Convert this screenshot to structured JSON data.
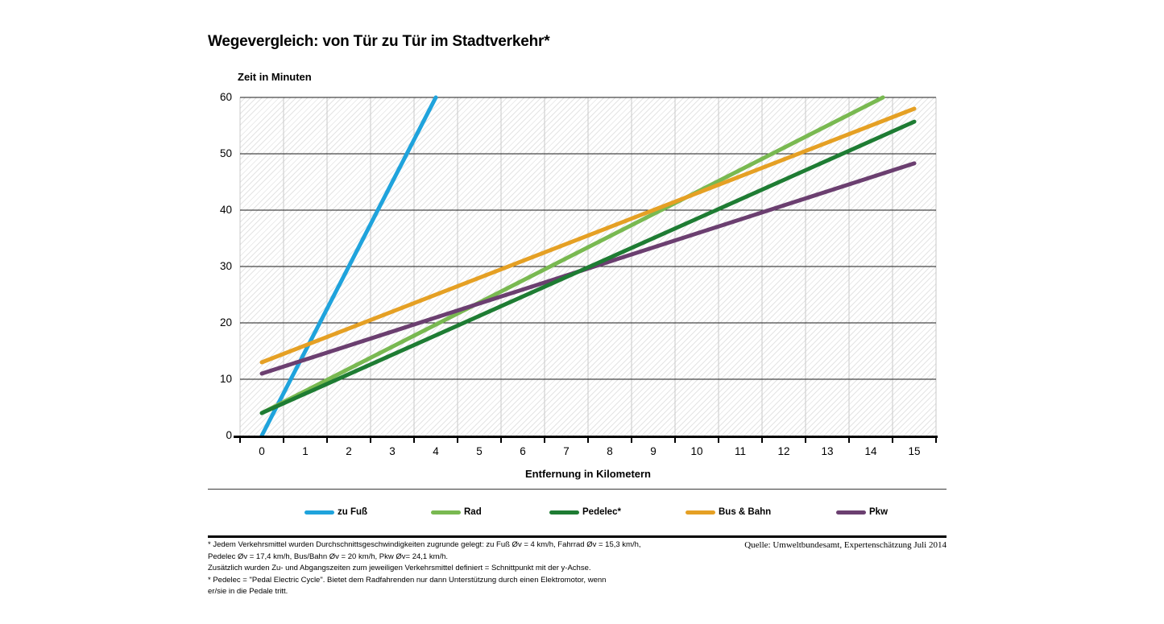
{
  "title": "Wegevergleich: von Tür zu Tür im Stadtverkehr*",
  "source": "Quelle: Umweltbundesamt, Expertenschätzung Juli 2014",
  "footnotes": [
    "* Jedem Verkehrsmittel wurden Durchschnittsgeschwindigkeiten zugrunde gelegt: zu Fuß Øv = 4 km/h, Fahrrad Øv = 15,3 km/h,",
    "Pedelec Øv = 17,4 km/h, Bus/Bahn Øv = 20 km/h, Pkw Øv= 24,1 km/h.",
    "Zusätzlich wurden Zu- und Abgangszeiten zum jeweiligen Verkehrsmittel definiert = Schnittpunkt mit der y-Achse.",
    "* Pedelec = \"Pedal Electric Cycle\". Bietet dem Radfahrenden nur dann Unterstützung durch einen Elektromotor, wenn",
    "er/sie in die Pedale tritt."
  ],
  "chart_data": {
    "type": "line",
    "title": "Wegevergleich: von Tür zu Tür im Stadtverkehr*",
    "xlabel": "Entfernung in Kilometern",
    "ylabel": "Zeit in Minuten",
    "xlim": [
      0,
      15
    ],
    "ylim": [
      0,
      60
    ],
    "x_ticks": [
      0,
      1,
      2,
      3,
      4,
      5,
      6,
      7,
      8,
      9,
      10,
      11,
      12,
      13,
      14,
      15
    ],
    "y_ticks": [
      0,
      10,
      20,
      30,
      40,
      50,
      60
    ],
    "grid": {
      "horizontal": "black thin every 10 min",
      "vertical": "light gray every 1 km",
      "background": "diagonal hatch"
    },
    "legend_position": "bottom",
    "series": [
      {
        "name": "zu Fuß",
        "color": "#1FA3DC",
        "speed_kmh": 4,
        "access_time_min": 0,
        "points": [
          [
            0,
            0
          ],
          [
            4,
            60
          ]
        ]
      },
      {
        "name": "Rad",
        "color": "#79B951",
        "speed_kmh": 15.3,
        "access_time_min": 4,
        "points": [
          [
            0,
            4
          ],
          [
            14.28,
            60
          ]
        ]
      },
      {
        "name": "Pedelec*",
        "color": "#1E7C33",
        "speed_kmh": 17.4,
        "access_time_min": 4,
        "points": [
          [
            0,
            4
          ],
          [
            15,
            55.7
          ]
        ]
      },
      {
        "name": "Bus & Bahn",
        "color": "#E5A024",
        "speed_kmh": 20,
        "access_time_min": 13,
        "points": [
          [
            0,
            13
          ],
          [
            15,
            58
          ]
        ]
      },
      {
        "name": "Pkw",
        "color": "#6B3F70",
        "speed_kmh": 24.1,
        "access_time_min": 11,
        "points": [
          [
            0,
            11
          ],
          [
            15,
            48.3
          ]
        ]
      }
    ],
    "draw_order": [
      0,
      1,
      4,
      3,
      2
    ],
    "axis_colors": {
      "gridline_h": "#1a1a1a",
      "gridline_v": "#c9c9c9",
      "axis": "#000000"
    }
  }
}
